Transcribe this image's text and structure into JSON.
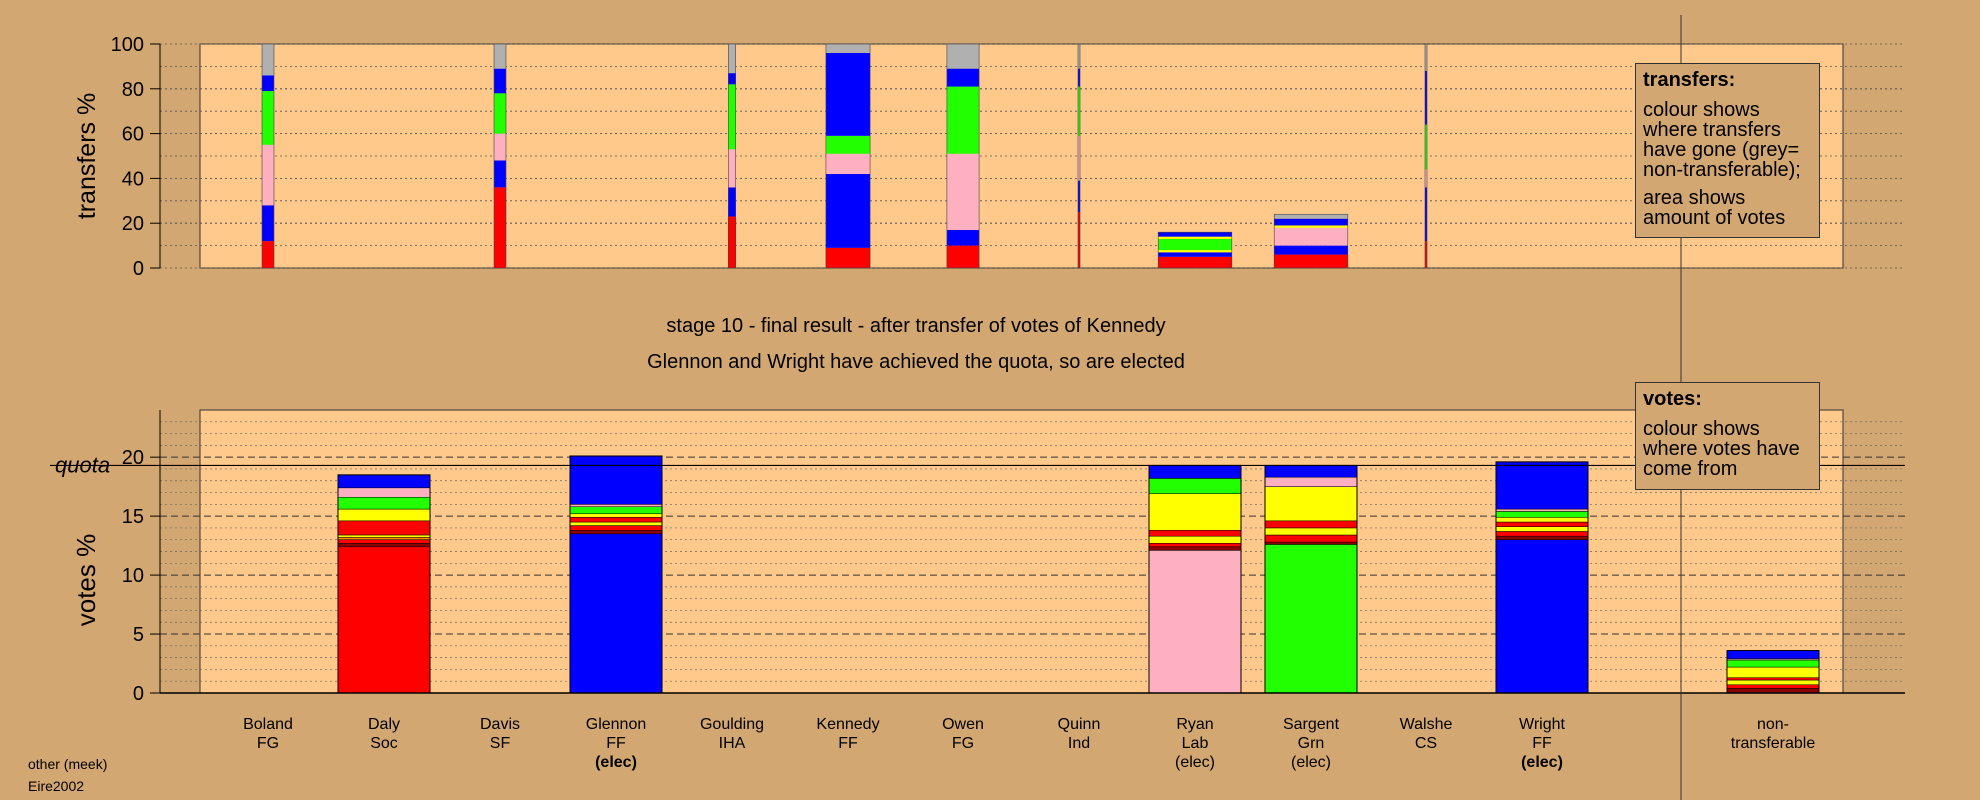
{
  "chart_data": [
    {
      "type": "bar",
      "panel": "transfers",
      "ylabel": "transfers %",
      "ylim": [
        0,
        100
      ],
      "yticks": [
        0,
        20,
        40,
        60,
        80,
        100
      ],
      "grid": "dotted horizontal",
      "colors": {
        "red": "#ff0000",
        "blue": "#0000ff",
        "pink": "#ffb0c0",
        "green": "#22ff00",
        "grey": "#b0b0b0",
        "yellow": "#ffff00",
        "darkred": "#8b0000",
        "orange": "#ff8c00"
      },
      "bars": [
        {
          "category": "Boland FG",
          "width": 0.13,
          "segments": [
            [
              "red",
              12
            ],
            [
              "blue",
              16
            ],
            [
              "pink",
              27
            ],
            [
              "green",
              24
            ],
            [
              "blue",
              7
            ],
            [
              "grey",
              14
            ]
          ]
        },
        {
          "category": "Davis SF",
          "width": 0.13,
          "segments": [
            [
              "red",
              36
            ],
            [
              "blue",
              12
            ],
            [
              "pink",
              12
            ],
            [
              "green",
              18
            ],
            [
              "blue",
              11
            ],
            [
              "grey",
              11
            ]
          ]
        },
        {
          "category": "Goulding IHA",
          "width": 0.08,
          "segments": [
            [
              "red",
              23
            ],
            [
              "blue",
              13
            ],
            [
              "pink",
              17
            ],
            [
              "green",
              29
            ],
            [
              "blue",
              5
            ],
            [
              "grey",
              13
            ]
          ]
        },
        {
          "category": "Kennedy FF",
          "width": 0.48,
          "segments": [
            [
              "red",
              9
            ],
            [
              "blue",
              33
            ],
            [
              "pink",
              9
            ],
            [
              "green",
              8
            ],
            [
              "blue",
              37
            ],
            [
              "grey",
              4
            ]
          ]
        },
        {
          "category": "Owen FG",
          "width": 0.35,
          "segments": [
            [
              "red",
              10
            ],
            [
              "blue",
              7
            ],
            [
              "pink",
              34
            ],
            [
              "green",
              30
            ],
            [
              "blue",
              8
            ],
            [
              "grey",
              11
            ]
          ]
        },
        {
          "category": "Quinn Ind",
          "width": 0.02,
          "segments": [
            [
              "red",
              25
            ],
            [
              "blue",
              14
            ],
            [
              "pink",
              20
            ],
            [
              "green",
              22
            ],
            [
              "blue",
              8
            ],
            [
              "grey",
              11
            ]
          ]
        },
        {
          "category": "Ryan Lab",
          "width": 0.8,
          "segments": [
            [
              "red",
              5
            ],
            [
              "blue",
              2
            ],
            [
              "yellow",
              1
            ],
            [
              "green",
              5
            ],
            [
              "yellow",
              1
            ],
            [
              "blue",
              2
            ]
          ]
        },
        {
          "category": "Sargent Grn",
          "width": 0.8,
          "segments": [
            [
              "red",
              6
            ],
            [
              "blue",
              4
            ],
            [
              "pink",
              8
            ],
            [
              "yellow",
              1
            ],
            [
              "blue",
              3
            ],
            [
              "grey",
              2
            ]
          ]
        },
        {
          "category": "Walshe CS",
          "width": 0.02,
          "segments": [
            [
              "red",
              12
            ],
            [
              "blue",
              24
            ],
            [
              "pink",
              8
            ],
            [
              "green",
              20
            ],
            [
              "blue",
              24
            ],
            [
              "grey",
              12
            ]
          ]
        }
      ]
    },
    {
      "type": "bar",
      "panel": "votes",
      "ylabel": "votes %",
      "ylim": [
        0,
        24
      ],
      "yticks": [
        0,
        5,
        10,
        15,
        20
      ],
      "quota": 19.3,
      "quota_label": "quota",
      "grid": "dotted + dashed horizontal",
      "categories": [
        "Boland FG",
        "Daly Soc",
        "Davis SF",
        "Glennon FF",
        "Goulding IHA",
        "Kennedy FF",
        "Owen FG",
        "Quinn Ind",
        "Ryan Lab",
        "Sargent Grn",
        "Walshe CS",
        "Wright FF",
        "non-transferable"
      ],
      "bars": [
        {
          "category": "Daly Soc",
          "segments": [
            [
              "red",
              12.4
            ],
            [
              "darkred",
              0.3
            ],
            [
              "red",
              0.3
            ],
            [
              "orange",
              0.2
            ],
            [
              "yellow",
              0.2
            ],
            [
              "red",
              1.2
            ],
            [
              "yellow",
              1.0
            ],
            [
              "green",
              1.0
            ],
            [
              "pink",
              0.8
            ],
            [
              "blue",
              1.1
            ]
          ]
        },
        {
          "category": "Glennon FF",
          "segments": [
            [
              "blue",
              13.5
            ],
            [
              "darkred",
              0.3
            ],
            [
              "red",
              0.4
            ],
            [
              "yellow",
              0.3
            ],
            [
              "red",
              0.4
            ],
            [
              "yellow",
              0.3
            ],
            [
              "green",
              0.6
            ],
            [
              "pink",
              0.2
            ],
            [
              "blue",
              4.1
            ]
          ]
        },
        {
          "category": "Ryan Lab",
          "segments": [
            [
              "pink",
              12.1
            ],
            [
              "darkred",
              0.3
            ],
            [
              "red",
              0.3
            ],
            [
              "yellow",
              0.6
            ],
            [
              "red",
              0.5
            ],
            [
              "yellow",
              3.1
            ],
            [
              "green",
              1.3
            ],
            [
              "blue",
              1.1
            ]
          ]
        },
        {
          "category": "Sargent Grn",
          "segments": [
            [
              "green",
              12.6
            ],
            [
              "darkred",
              0.2
            ],
            [
              "red",
              0.6
            ],
            [
              "yellow",
              0.6
            ],
            [
              "red",
              0.6
            ],
            [
              "yellow",
              2.9
            ],
            [
              "pink",
              0.8
            ],
            [
              "blue",
              1.0
            ]
          ]
        },
        {
          "category": "Wright FF",
          "segments": [
            [
              "blue",
              13.0
            ],
            [
              "darkred",
              0.3
            ],
            [
              "red",
              0.4
            ],
            [
              "yellow",
              0.4
            ],
            [
              "red",
              0.4
            ],
            [
              "yellow",
              0.4
            ],
            [
              "green",
              0.5
            ],
            [
              "pink",
              0.2
            ],
            [
              "blue",
              4.0
            ]
          ]
        },
        {
          "category": "non-transferable",
          "segments": [
            [
              "darkred",
              0.4
            ],
            [
              "red",
              0.3
            ],
            [
              "yellow",
              0.4
            ],
            [
              "red",
              0.2
            ],
            [
              "yellow",
              0.9
            ],
            [
              "green",
              0.6
            ],
            [
              "pink",
              0.1
            ],
            [
              "blue",
              0.7
            ]
          ]
        }
      ]
    }
  ],
  "titles": {
    "stage": "stage 10 - final result - after transfer of votes of Kennedy",
    "summary": "Glennon and Wright have achieved the quota, so are elected"
  },
  "candidates": [
    {
      "name": "Boland",
      "party": "FG",
      "status": ""
    },
    {
      "name": "Daly",
      "party": "Soc",
      "status": ""
    },
    {
      "name": "Davis",
      "party": "SF",
      "status": ""
    },
    {
      "name": "Glennon",
      "party": "FF",
      "status": "(elec)",
      "status_bold": true
    },
    {
      "name": "Goulding",
      "party": "IHA",
      "status": ""
    },
    {
      "name": "Kennedy",
      "party": "FF",
      "status": ""
    },
    {
      "name": "Owen",
      "party": "FG",
      "status": ""
    },
    {
      "name": "Quinn",
      "party": "Ind",
      "status": ""
    },
    {
      "name": "Ryan",
      "party": "Lab",
      "status": "(elec)",
      "status_bold": false
    },
    {
      "name": "Sargent",
      "party": "Grn",
      "status": "(elec)",
      "status_bold": false
    },
    {
      "name": "Walshe",
      "party": "CS",
      "status": ""
    },
    {
      "name": "Wright",
      "party": "FF",
      "status": "(elec)",
      "status_bold": true
    },
    {
      "name": "non-",
      "party": "transferable",
      "status": ""
    }
  ],
  "legend_transfers": {
    "title": "transfers:",
    "p1": "colour shows where transfers have gone (grey= non-transferable);",
    "p2": "area shows amount of votes"
  },
  "legend_votes": {
    "title": "votes:",
    "p1": "colour shows where votes have come from"
  },
  "footer": {
    "note": "other (meek)",
    "source": "Eire2002"
  }
}
